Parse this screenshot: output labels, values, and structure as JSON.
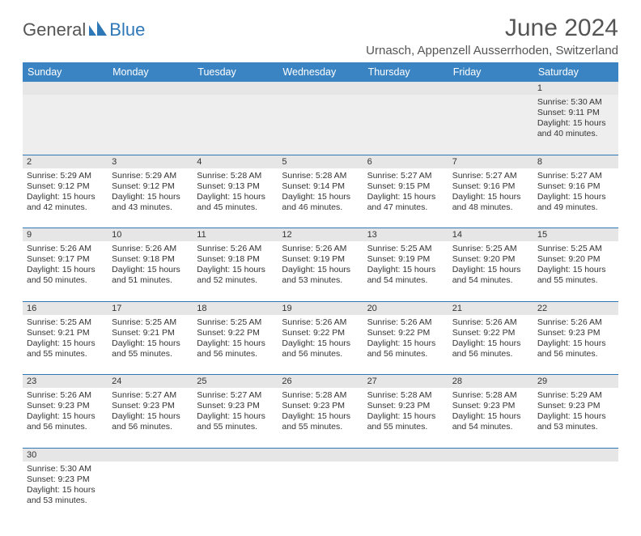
{
  "brand": {
    "part1": "General",
    "part2": "Blue"
  },
  "title": "June 2024",
  "location": "Urnasch, Appenzell Ausserrhoden, Switzerland",
  "colors": {
    "header_bg": "#3b84c4",
    "header_text": "#ffffff",
    "row_divider": "#2f78b7",
    "daynum_bg": "#e6e6e6",
    "body_text": "#333333",
    "title_text": "#555555"
  },
  "weekdays": [
    "Sunday",
    "Monday",
    "Tuesday",
    "Wednesday",
    "Thursday",
    "Friday",
    "Saturday"
  ],
  "weeks": [
    [
      null,
      null,
      null,
      null,
      null,
      null,
      {
        "n": "1",
        "sr": "Sunrise: 5:30 AM",
        "ss": "Sunset: 9:11 PM",
        "d1": "Daylight: 15 hours",
        "d2": "and 40 minutes."
      }
    ],
    [
      {
        "n": "2",
        "sr": "Sunrise: 5:29 AM",
        "ss": "Sunset: 9:12 PM",
        "d1": "Daylight: 15 hours",
        "d2": "and 42 minutes."
      },
      {
        "n": "3",
        "sr": "Sunrise: 5:29 AM",
        "ss": "Sunset: 9:12 PM",
        "d1": "Daylight: 15 hours",
        "d2": "and 43 minutes."
      },
      {
        "n": "4",
        "sr": "Sunrise: 5:28 AM",
        "ss": "Sunset: 9:13 PM",
        "d1": "Daylight: 15 hours",
        "d2": "and 45 minutes."
      },
      {
        "n": "5",
        "sr": "Sunrise: 5:28 AM",
        "ss": "Sunset: 9:14 PM",
        "d1": "Daylight: 15 hours",
        "d2": "and 46 minutes."
      },
      {
        "n": "6",
        "sr": "Sunrise: 5:27 AM",
        "ss": "Sunset: 9:15 PM",
        "d1": "Daylight: 15 hours",
        "d2": "and 47 minutes."
      },
      {
        "n": "7",
        "sr": "Sunrise: 5:27 AM",
        "ss": "Sunset: 9:16 PM",
        "d1": "Daylight: 15 hours",
        "d2": "and 48 minutes."
      },
      {
        "n": "8",
        "sr": "Sunrise: 5:27 AM",
        "ss": "Sunset: 9:16 PM",
        "d1": "Daylight: 15 hours",
        "d2": "and 49 minutes."
      }
    ],
    [
      {
        "n": "9",
        "sr": "Sunrise: 5:26 AM",
        "ss": "Sunset: 9:17 PM",
        "d1": "Daylight: 15 hours",
        "d2": "and 50 minutes."
      },
      {
        "n": "10",
        "sr": "Sunrise: 5:26 AM",
        "ss": "Sunset: 9:18 PM",
        "d1": "Daylight: 15 hours",
        "d2": "and 51 minutes."
      },
      {
        "n": "11",
        "sr": "Sunrise: 5:26 AM",
        "ss": "Sunset: 9:18 PM",
        "d1": "Daylight: 15 hours",
        "d2": "and 52 minutes."
      },
      {
        "n": "12",
        "sr": "Sunrise: 5:26 AM",
        "ss": "Sunset: 9:19 PM",
        "d1": "Daylight: 15 hours",
        "d2": "and 53 minutes."
      },
      {
        "n": "13",
        "sr": "Sunrise: 5:25 AM",
        "ss": "Sunset: 9:19 PM",
        "d1": "Daylight: 15 hours",
        "d2": "and 54 minutes."
      },
      {
        "n": "14",
        "sr": "Sunrise: 5:25 AM",
        "ss": "Sunset: 9:20 PM",
        "d1": "Daylight: 15 hours",
        "d2": "and 54 minutes."
      },
      {
        "n": "15",
        "sr": "Sunrise: 5:25 AM",
        "ss": "Sunset: 9:20 PM",
        "d1": "Daylight: 15 hours",
        "d2": "and 55 minutes."
      }
    ],
    [
      {
        "n": "16",
        "sr": "Sunrise: 5:25 AM",
        "ss": "Sunset: 9:21 PM",
        "d1": "Daylight: 15 hours",
        "d2": "and 55 minutes."
      },
      {
        "n": "17",
        "sr": "Sunrise: 5:25 AM",
        "ss": "Sunset: 9:21 PM",
        "d1": "Daylight: 15 hours",
        "d2": "and 55 minutes."
      },
      {
        "n": "18",
        "sr": "Sunrise: 5:25 AM",
        "ss": "Sunset: 9:22 PM",
        "d1": "Daylight: 15 hours",
        "d2": "and 56 minutes."
      },
      {
        "n": "19",
        "sr": "Sunrise: 5:26 AM",
        "ss": "Sunset: 9:22 PM",
        "d1": "Daylight: 15 hours",
        "d2": "and 56 minutes."
      },
      {
        "n": "20",
        "sr": "Sunrise: 5:26 AM",
        "ss": "Sunset: 9:22 PM",
        "d1": "Daylight: 15 hours",
        "d2": "and 56 minutes."
      },
      {
        "n": "21",
        "sr": "Sunrise: 5:26 AM",
        "ss": "Sunset: 9:22 PM",
        "d1": "Daylight: 15 hours",
        "d2": "and 56 minutes."
      },
      {
        "n": "22",
        "sr": "Sunrise: 5:26 AM",
        "ss": "Sunset: 9:23 PM",
        "d1": "Daylight: 15 hours",
        "d2": "and 56 minutes."
      }
    ],
    [
      {
        "n": "23",
        "sr": "Sunrise: 5:26 AM",
        "ss": "Sunset: 9:23 PM",
        "d1": "Daylight: 15 hours",
        "d2": "and 56 minutes."
      },
      {
        "n": "24",
        "sr": "Sunrise: 5:27 AM",
        "ss": "Sunset: 9:23 PM",
        "d1": "Daylight: 15 hours",
        "d2": "and 56 minutes."
      },
      {
        "n": "25",
        "sr": "Sunrise: 5:27 AM",
        "ss": "Sunset: 9:23 PM",
        "d1": "Daylight: 15 hours",
        "d2": "and 55 minutes."
      },
      {
        "n": "26",
        "sr": "Sunrise: 5:28 AM",
        "ss": "Sunset: 9:23 PM",
        "d1": "Daylight: 15 hours",
        "d2": "and 55 minutes."
      },
      {
        "n": "27",
        "sr": "Sunrise: 5:28 AM",
        "ss": "Sunset: 9:23 PM",
        "d1": "Daylight: 15 hours",
        "d2": "and 55 minutes."
      },
      {
        "n": "28",
        "sr": "Sunrise: 5:28 AM",
        "ss": "Sunset: 9:23 PM",
        "d1": "Daylight: 15 hours",
        "d2": "and 54 minutes."
      },
      {
        "n": "29",
        "sr": "Sunrise: 5:29 AM",
        "ss": "Sunset: 9:23 PM",
        "d1": "Daylight: 15 hours",
        "d2": "and 53 minutes."
      }
    ],
    [
      {
        "n": "30",
        "sr": "Sunrise: 5:30 AM",
        "ss": "Sunset: 9:23 PM",
        "d1": "Daylight: 15 hours",
        "d2": "and 53 minutes."
      },
      null,
      null,
      null,
      null,
      null,
      null
    ]
  ]
}
